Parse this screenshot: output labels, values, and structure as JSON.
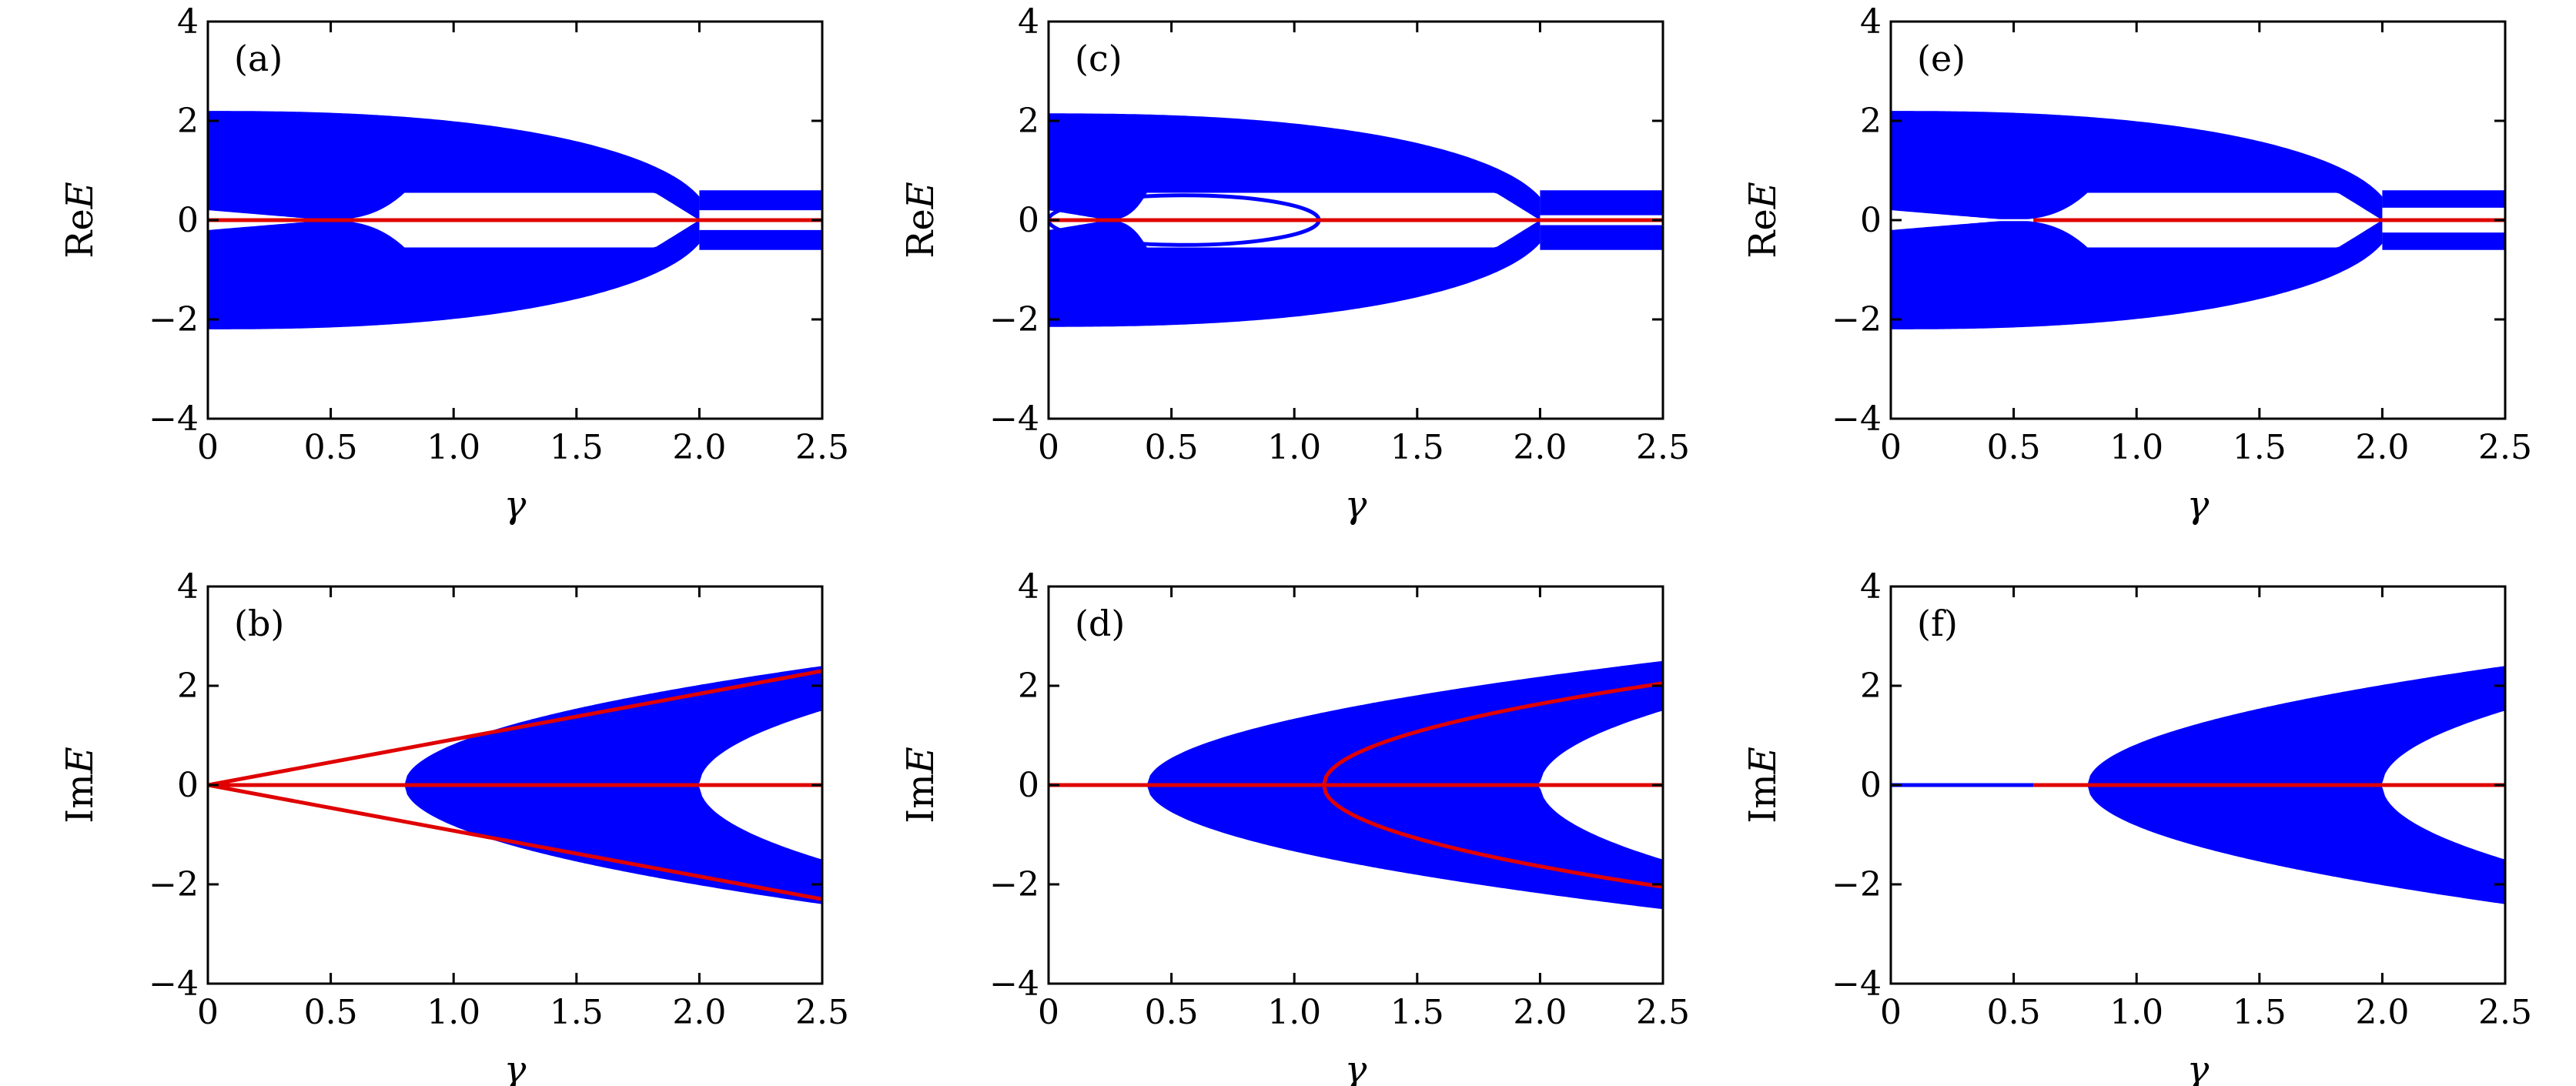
{
  "figure": {
    "colors": {
      "bulk": "#0000ff",
      "edge": "#e00000",
      "axis": "#000000"
    }
  },
  "chart_data": [
    {
      "panel": "(a)",
      "type": "area",
      "quantity": "re",
      "xlabel": "γ",
      "ylabel_prefix": "Re",
      "ylabel_var": "E",
      "xlim": [
        0,
        2.5
      ],
      "ylim": [
        -4,
        4
      ],
      "xticks": [
        "0",
        "0.5",
        "1.0",
        "1.5",
        "2.0",
        "2.5"
      ],
      "yticks": [
        "−4",
        "−2",
        "0",
        "2",
        "4"
      ],
      "bulk_outer_amplitude_at_0": 2.2,
      "split_point": 2.0,
      "gap_open": 0.8,
      "inner_gap_edge": 0.55,
      "post_split_band": [
        0.2,
        0.6
      ],
      "edge_state": {
        "x": [
          0,
          2.5
        ],
        "y": [
          0,
          0
        ]
      },
      "grid": false
    },
    {
      "panel": "(b)",
      "type": "area",
      "quantity": "im",
      "xlabel": "γ",
      "ylabel_prefix": "Im",
      "ylabel_var": "E",
      "xlim": [
        0,
        2.5
      ],
      "ylim": [
        -4,
        4
      ],
      "xticks": [
        "0",
        "0.5",
        "1.0",
        "1.5",
        "2.0",
        "2.5"
      ],
      "yticks": [
        "−4",
        "−2",
        "0",
        "2",
        "4"
      ],
      "bulk_onset": 0.8,
      "bulk_inner_onset": 2.0,
      "bulk_max_at_2_5": 2.4,
      "edge_states": [
        {
          "name": "",
          "x": [
            0,
            2.5
          ],
          "y": [
            0,
            2.3
          ]
        },
        {
          "name": "",
          "x": [
            0,
            2.5
          ],
          "y": [
            0,
            -2.3
          ]
        },
        {
          "name": "",
          "x": [
            0,
            2.5
          ],
          "y": [
            0,
            0
          ]
        }
      ],
      "grid": false
    },
    {
      "panel": "(c)",
      "type": "area",
      "quantity": "re",
      "xlabel": "γ",
      "ylabel_prefix": "Re",
      "ylabel_var": "E",
      "xlim": [
        0,
        2.5
      ],
      "ylim": [
        -4,
        4
      ],
      "xticks": [
        "0",
        "0.5",
        "1.0",
        "1.5",
        "2.0",
        "2.5"
      ],
      "yticks": [
        "−4",
        "−2",
        "0",
        "2",
        "4"
      ],
      "bulk_outer_amplitude_at_0": 2.15,
      "split_point": 2.0,
      "gap_open": 0.4,
      "inner_gap_edge": 0.55,
      "post_split_band": [
        0.1,
        0.6
      ],
      "loop": {
        "x": [
          0,
          1.1
        ],
        "y_amplitude": 0.5
      },
      "edge_state": {
        "x": [
          0,
          2.5
        ],
        "y": [
          0,
          0
        ]
      },
      "grid": false
    },
    {
      "panel": "(d)",
      "type": "area",
      "quantity": "im",
      "xlabel": "γ",
      "ylabel_prefix": "Im",
      "ylabel_var": "E",
      "xlim": [
        0,
        2.5
      ],
      "ylim": [
        -4,
        4
      ],
      "xticks": [
        "0",
        "0.5",
        "1.0",
        "1.5",
        "2.0",
        "2.5"
      ],
      "yticks": [
        "−4",
        "−2",
        "0",
        "2",
        "4"
      ],
      "bulk_onset": 0.4,
      "bulk_inner_onset": 2.0,
      "bulk_max_at_2_5": 2.5,
      "edge_states": [
        {
          "name": "",
          "x": [
            0,
            1.12
          ],
          "y": [
            0,
            0
          ]
        },
        {
          "name": "",
          "x": [
            1.12,
            2.5
          ],
          "y": [
            0,
            2.05
          ]
        },
        {
          "name": "",
          "x": [
            1.12,
            2.5
          ],
          "y": [
            0,
            -2.05
          ]
        },
        {
          "name": "",
          "x": [
            1.12,
            2.5
          ],
          "y": [
            0,
            0
          ]
        }
      ],
      "grid": false
    },
    {
      "panel": "(e)",
      "type": "area",
      "quantity": "re",
      "xlabel": "γ",
      "ylabel_prefix": "Re",
      "ylabel_var": "E",
      "xlim": [
        0,
        2.5
      ],
      "ylim": [
        -4,
        4
      ],
      "xticks": [
        "0",
        "0.5",
        "1.0",
        "1.5",
        "2.0",
        "2.5"
      ],
      "yticks": [
        "−4",
        "−2",
        "0",
        "2",
        "4"
      ],
      "bulk_outer_amplitude_at_0": 2.2,
      "split_point": 2.0,
      "gap_open": 0.8,
      "inner_gap_edge": 0.55,
      "post_split_band": [
        0.25,
        0.6
      ],
      "edge_state": {
        "x": [
          0.58,
          2.5
        ],
        "y": [
          0,
          0
        ]
      },
      "grid": false
    },
    {
      "panel": "(f)",
      "type": "area",
      "quantity": "im",
      "xlabel": "γ",
      "ylabel_prefix": "Im",
      "ylabel_var": "E",
      "xlim": [
        0,
        2.5
      ],
      "ylim": [
        -4,
        4
      ],
      "xticks": [
        "0",
        "0.5",
        "1.0",
        "1.5",
        "2.0",
        "2.5"
      ],
      "yticks": [
        "−4",
        "−2",
        "0",
        "2",
        "4"
      ],
      "bulk_onset": 0.8,
      "bulk_inner_onset": 2.0,
      "bulk_max_at_2_5": 2.4,
      "edge_states": [
        {
          "name": "",
          "x": [
            0,
            0.58
          ],
          "y": [
            0,
            0
          ],
          "color": "bulk"
        },
        {
          "name": "",
          "x": [
            0.58,
            2.5
          ],
          "y": [
            0,
            0
          ]
        }
      ],
      "grid": false
    }
  ]
}
